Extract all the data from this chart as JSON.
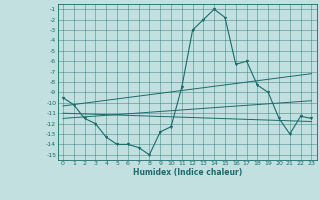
{
  "title": "",
  "xlabel": "Humidex (Indice chaleur)",
  "xlim": [
    -0.5,
    23.5
  ],
  "ylim": [
    -15.5,
    -0.5
  ],
  "xticks": [
    0,
    1,
    2,
    3,
    4,
    5,
    6,
    7,
    8,
    9,
    10,
    11,
    12,
    13,
    14,
    15,
    16,
    17,
    18,
    19,
    20,
    21,
    22,
    23
  ],
  "yticks": [
    -1,
    -2,
    -3,
    -4,
    -5,
    -6,
    -7,
    -8,
    -9,
    -10,
    -11,
    -12,
    -13,
    -14,
    -15
  ],
  "bg_color": "#c2e0e0",
  "line_color": "#1a6b6b",
  "grid_color": "#1a6b6b",
  "main_curve_x": [
    0,
    1,
    2,
    3,
    4,
    5,
    6,
    7,
    8,
    9,
    10,
    11,
    12,
    13,
    14,
    15,
    16,
    17,
    18,
    19,
    20,
    21,
    22,
    23
  ],
  "main_curve_y": [
    -9.5,
    -10.2,
    -11.5,
    -12.0,
    -13.3,
    -14.0,
    -14.0,
    -14.3,
    -15.0,
    -12.8,
    -12.3,
    -8.5,
    -3.0,
    -2.0,
    -1.0,
    -1.8,
    -6.3,
    -6.0,
    -8.3,
    -9.0,
    -11.5,
    -13.0,
    -11.3,
    -11.5
  ],
  "line1_x": [
    0,
    23
  ],
  "line1_y": [
    -10.3,
    -7.2
  ],
  "line2_x": [
    0,
    23
  ],
  "line2_y": [
    -11.0,
    -11.8
  ],
  "line3_x": [
    0,
    23
  ],
  "line3_y": [
    -11.5,
    -9.8
  ]
}
